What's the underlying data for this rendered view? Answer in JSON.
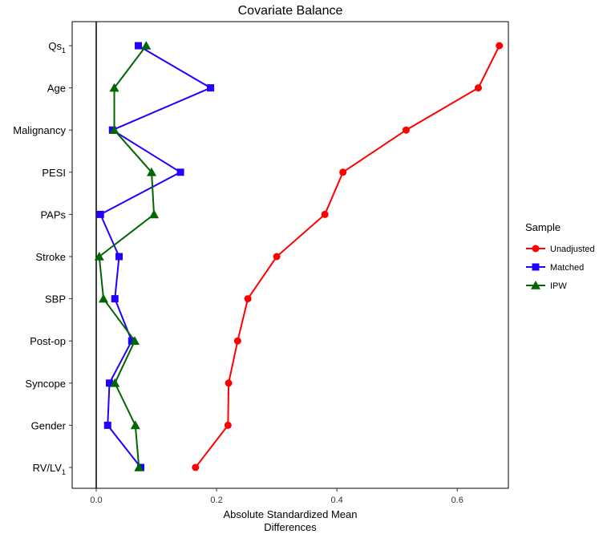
{
  "chart_data": {
    "type": "line",
    "title": "Covariate Balance",
    "xlabel_lines": [
      "Absolute Standardized Mean",
      "Differences"
    ],
    "ylabel": "",
    "xlim": [
      -0.04,
      0.685
    ],
    "x_ticks": [
      0.0,
      0.2,
      0.4,
      0.6
    ],
    "x_tick_labels": [
      "0.0",
      "0.2",
      "0.4",
      "0.6"
    ],
    "reference_line_x": 0,
    "grid": false,
    "legend_position": "right",
    "legend_title": "Sample",
    "categories": [
      {
        "base": "Qs",
        "sub": "1"
      },
      {
        "base": "Age",
        "sub": ""
      },
      {
        "base": "Malignancy",
        "sub": ""
      },
      {
        "base": "PESI",
        "sub": ""
      },
      {
        "base": "PAPs",
        "sub": ""
      },
      {
        "base": "Stroke",
        "sub": ""
      },
      {
        "base": "SBP",
        "sub": ""
      },
      {
        "base": "Post-op",
        "sub": ""
      },
      {
        "base": "Syncope",
        "sub": ""
      },
      {
        "base": "Gender",
        "sub": ""
      },
      {
        "base": "RV/LV",
        "sub": "1"
      }
    ],
    "series": [
      {
        "name": "Unadjusted",
        "color": "#ff0000",
        "marker": "circle",
        "values": [
          0.67,
          0.635,
          0.515,
          0.41,
          0.38,
          0.3,
          0.252,
          0.235,
          0.22,
          0.219,
          0.165
        ]
      },
      {
        "name": "Matched",
        "color": "#2200ff",
        "marker": "square",
        "values": [
          0.07,
          0.19,
          0.027,
          0.14,
          0.007,
          0.038,
          0.031,
          0.059,
          0.022,
          0.019,
          0.074
        ]
      },
      {
        "name": "IPW",
        "color": "#006600",
        "marker": "triangle",
        "values": [
          0.083,
          0.03,
          0.03,
          0.092,
          0.096,
          0.005,
          0.012,
          0.064,
          0.031,
          0.065,
          0.071
        ]
      }
    ]
  }
}
